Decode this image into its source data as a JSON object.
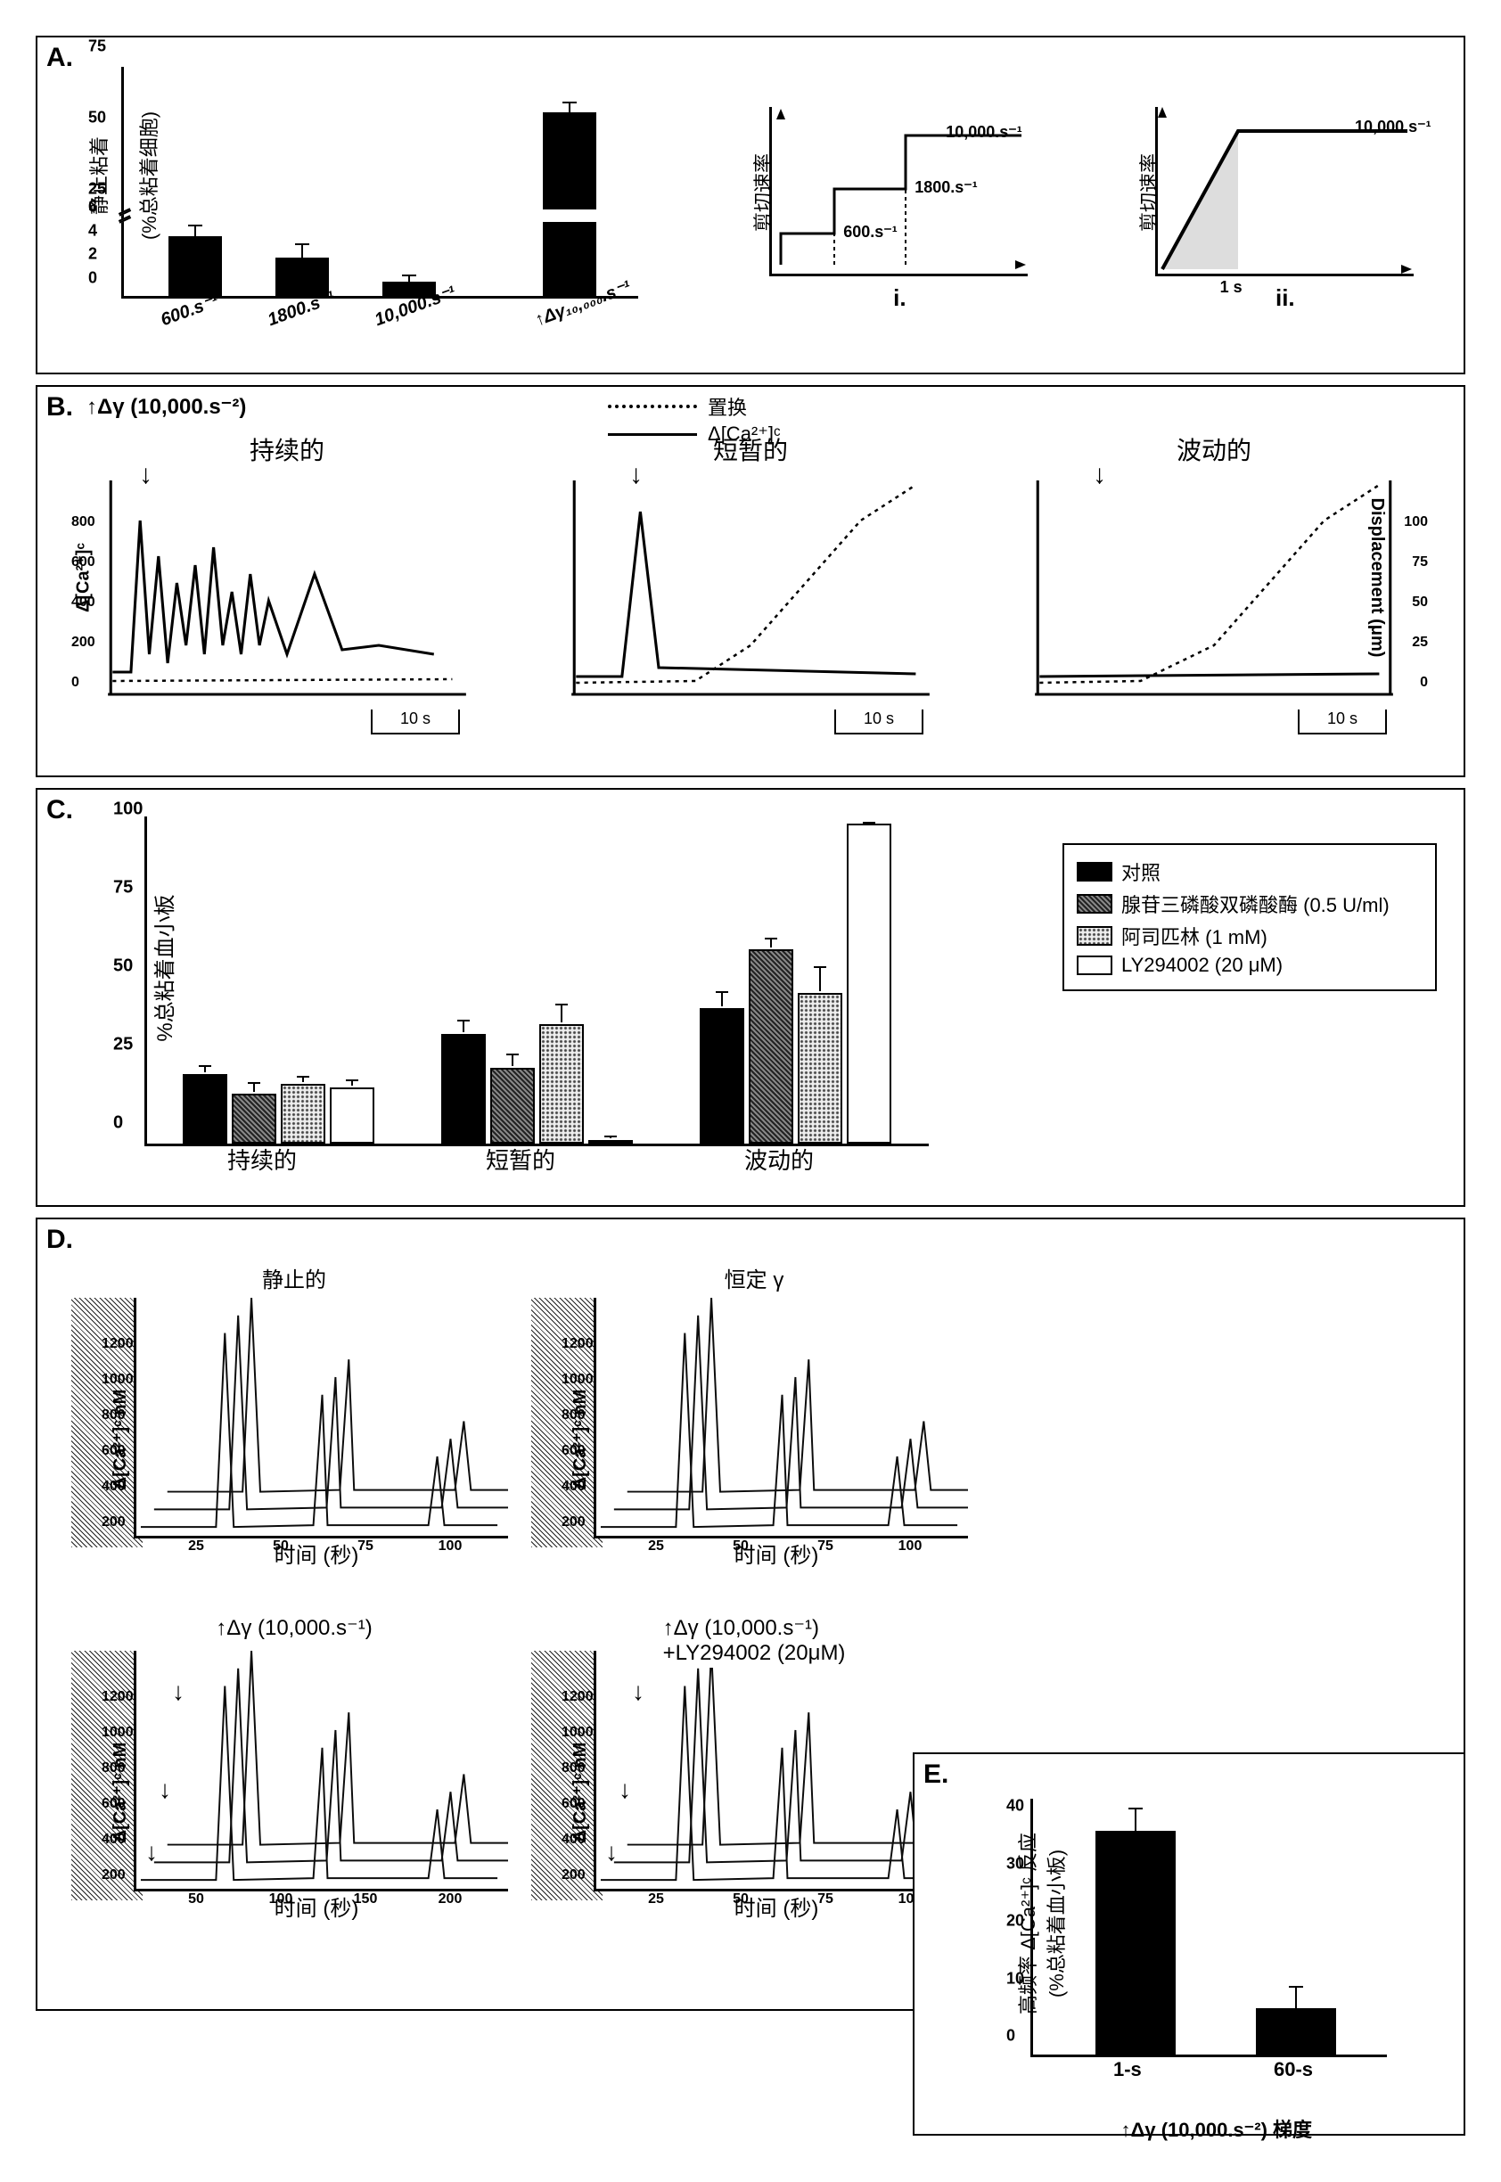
{
  "panelA": {
    "label": "A.",
    "ylabel1": "静止粘着",
    "ylabel2": "(%总粘着细胞)",
    "yticks_low": [
      "0",
      "2",
      "4",
      "6"
    ],
    "yticks_high": [
      "25",
      "50",
      "75"
    ],
    "categories": [
      "600.s⁻¹",
      "1800.s⁻¹",
      "10,000.s⁻¹",
      "↑Δγ₁₀,₀₀₀.s⁻¹"
    ],
    "values": [
      5,
      3.2,
      1.2,
      58
    ],
    "errors": [
      1.0,
      1.2,
      0.6,
      4
    ],
    "ymax": 75,
    "bar_color": "#000000",
    "mini_i": {
      "label": "i.",
      "yaxis": "剪切速率",
      "steps": [
        "600.s⁻¹",
        "1800.s⁻¹",
        "10,000.s⁻¹"
      ]
    },
    "mini_ii": {
      "label": "ii.",
      "yaxis": "剪切速率",
      "ramp_label": "10,000.s⁻¹",
      "xlabel": "1 s"
    }
  },
  "panelB": {
    "label": "B.",
    "title": "↑Δγ (10,000.s⁻²)",
    "legend_disp": "置换",
    "legend_ca": "Δ[Ca²⁺]ᶜ",
    "trace_titles": [
      "持续的",
      "短暂的",
      "波动的"
    ],
    "ylabel_left": "Δ[Ca²⁺]ᶜ",
    "ylabel_right": "Displacement (μm)",
    "yticks_left": [
      "0",
      "200",
      "400",
      "600",
      "800"
    ],
    "yticks_right": [
      "0",
      "25",
      "50",
      "75",
      "100"
    ],
    "scalebar": "10 s"
  },
  "panelC": {
    "label": "C.",
    "ylabel": "%总粘着血小板",
    "yticks": [
      "0",
      "25",
      "50",
      "75",
      "100"
    ],
    "groups": [
      "持续的",
      "短暂的",
      "波动的"
    ],
    "series": [
      {
        "name": "对照",
        "fill": "#000000",
        "values": [
          22,
          35,
          43
        ],
        "errors": [
          2.5,
          4,
          5
        ]
      },
      {
        "name": "腺苷三磷酸双磷酸酶 (0.5 U/ml)",
        "fill": "pattern-dark",
        "values": [
          16,
          24,
          62
        ],
        "errors": [
          3,
          4,
          3
        ]
      },
      {
        "name": "阿司匹林 (1 mM)",
        "fill": "pattern-dots",
        "values": [
          19,
          38,
          48
        ],
        "errors": [
          2,
          6,
          8
        ]
      },
      {
        "name": "LY294002 (20 μM)",
        "fill": "#ffffff",
        "values": [
          18,
          1,
          102
        ],
        "errors": [
          2,
          1,
          0
        ]
      }
    ],
    "ymax": 105
  },
  "panelD": {
    "label": "D.",
    "ylabel": "Δ[Ca²⁺]ᶜ nM",
    "xlabel": "时间 (秒)",
    "yticks": [
      "200",
      "400",
      "600",
      "800",
      "1000",
      "1200"
    ],
    "xticks": [
      "25",
      "50",
      "75",
      "100"
    ],
    "xticks_long": [
      "50",
      "100",
      "150",
      "200"
    ],
    "subplots": [
      {
        "title": "静止的",
        "xticks": "short"
      },
      {
        "title": "恒定 γ",
        "xticks": "short"
      },
      {
        "title": "↑Δγ (10,000.s⁻¹)",
        "xticks": "long",
        "arrows": true
      },
      {
        "title": "↑Δγ (10,000.s⁻¹)\n+LY294002 (20μM)",
        "xticks": "short",
        "arrows": true
      }
    ]
  },
  "panelE": {
    "label": "E.",
    "ylabel1": "高频率 Δ[Ca²⁺]ᶜ 反应",
    "ylabel2": "(%总粘着血小板)",
    "yticks": [
      "0",
      "10",
      "20",
      "30",
      "40"
    ],
    "categories": [
      "1-s",
      "60-s"
    ],
    "values": [
      39,
      8
    ],
    "errors": [
      4,
      4
    ],
    "ymax": 45,
    "xtitle": "↑Δγ (10,000.s⁻²) 梯度"
  },
  "colors": {
    "black": "#000000",
    "white": "#ffffff"
  }
}
